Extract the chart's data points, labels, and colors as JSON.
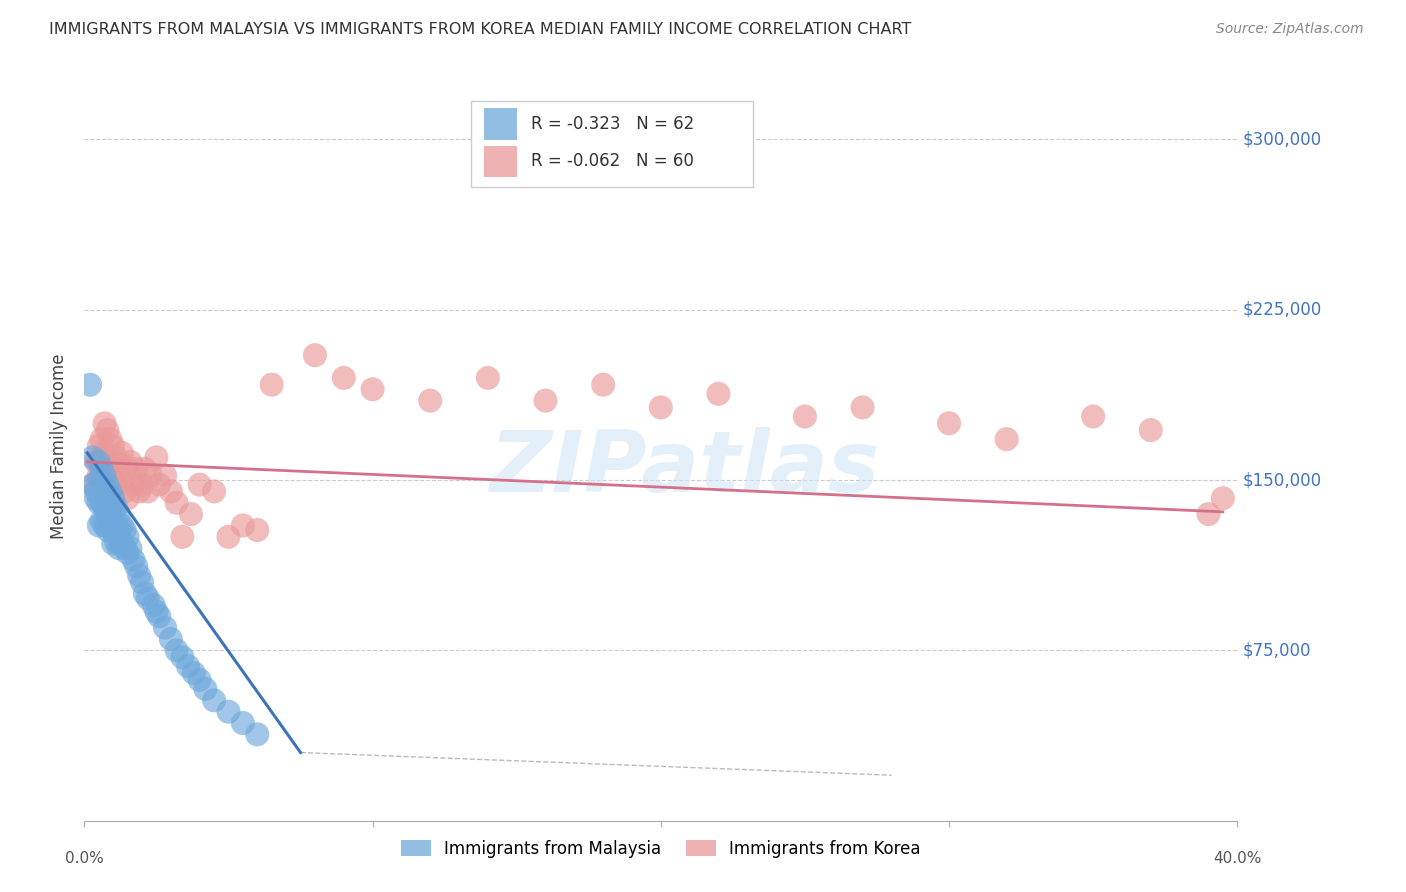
{
  "title": "IMMIGRANTS FROM MALAYSIA VS IMMIGRANTS FROM KOREA MEDIAN FAMILY INCOME CORRELATION CHART",
  "source": "Source: ZipAtlas.com",
  "ylabel": "Median Family Income",
  "ytick_values": [
    75000,
    150000,
    225000,
    300000
  ],
  "ylim": [
    0,
    330000
  ],
  "xlim": [
    0.0,
    0.4
  ],
  "watermark": "ZIPatlas",
  "background_color": "#ffffff",
  "malaysia_color": "#6fa8dc",
  "korea_color": "#ea9999",
  "malaysia_line_color": "#3d74b8",
  "korea_line_color": "#d4718a",
  "legend_malaysia_R": "-0.323",
  "legend_malaysia_N": "62",
  "legend_korea_R": "-0.062",
  "legend_korea_N": "60",
  "malaysia_scatter_x": [
    0.002,
    0.003,
    0.003,
    0.004,
    0.004,
    0.005,
    0.005,
    0.005,
    0.005,
    0.006,
    0.006,
    0.006,
    0.006,
    0.007,
    0.007,
    0.007,
    0.007,
    0.008,
    0.008,
    0.008,
    0.008,
    0.009,
    0.009,
    0.009,
    0.01,
    0.01,
    0.01,
    0.01,
    0.011,
    0.011,
    0.011,
    0.012,
    0.012,
    0.012,
    0.013,
    0.013,
    0.014,
    0.014,
    0.015,
    0.015,
    0.016,
    0.017,
    0.018,
    0.019,
    0.02,
    0.021,
    0.022,
    0.024,
    0.025,
    0.026,
    0.028,
    0.03,
    0.032,
    0.034,
    0.036,
    0.038,
    0.04,
    0.042,
    0.045,
    0.05,
    0.055,
    0.06
  ],
  "malaysia_scatter_y": [
    192000,
    160000,
    148000,
    145000,
    142000,
    158000,
    150000,
    140000,
    130000,
    155000,
    148000,
    140000,
    132000,
    152000,
    145000,
    138000,
    130000,
    148000,
    142000,
    135000,
    128000,
    145000,
    138000,
    130000,
    142000,
    135000,
    128000,
    122000,
    138000,
    130000,
    123000,
    135000,
    128000,
    120000,
    130000,
    123000,
    128000,
    120000,
    125000,
    118000,
    120000,
    115000,
    112000,
    108000,
    105000,
    100000,
    98000,
    95000,
    92000,
    90000,
    85000,
    80000,
    75000,
    72000,
    68000,
    65000,
    62000,
    58000,
    53000,
    48000,
    43000,
    38000
  ],
  "korea_scatter_x": [
    0.003,
    0.004,
    0.005,
    0.005,
    0.006,
    0.006,
    0.007,
    0.007,
    0.008,
    0.008,
    0.009,
    0.009,
    0.01,
    0.01,
    0.011,
    0.011,
    0.012,
    0.013,
    0.013,
    0.014,
    0.015,
    0.015,
    0.016,
    0.017,
    0.018,
    0.019,
    0.02,
    0.021,
    0.022,
    0.023,
    0.025,
    0.026,
    0.028,
    0.03,
    0.032,
    0.034,
    0.037,
    0.04,
    0.045,
    0.05,
    0.055,
    0.06,
    0.065,
    0.08,
    0.09,
    0.1,
    0.12,
    0.14,
    0.16,
    0.18,
    0.2,
    0.22,
    0.25,
    0.27,
    0.3,
    0.32,
    0.35,
    0.37,
    0.39,
    0.395
  ],
  "korea_scatter_y": [
    148000,
    158000,
    165000,
    152000,
    168000,
    155000,
    175000,
    162000,
    172000,
    158000,
    168000,
    155000,
    165000,
    152000,
    160000,
    148000,
    157000,
    150000,
    162000,
    145000,
    155000,
    142000,
    158000,
    148000,
    155000,
    145000,
    148000,
    155000,
    145000,
    152000,
    160000,
    148000,
    152000,
    145000,
    140000,
    125000,
    135000,
    148000,
    145000,
    125000,
    130000,
    128000,
    192000,
    205000,
    195000,
    190000,
    185000,
    195000,
    185000,
    192000,
    182000,
    188000,
    178000,
    182000,
    175000,
    168000,
    178000,
    172000,
    135000,
    142000
  ],
  "malaysia_line_x": [
    0.001,
    0.075
  ],
  "malaysia_line_y": [
    162000,
    30000
  ],
  "korea_line_x": [
    0.001,
    0.395
  ],
  "korea_line_y": [
    158000,
    136000
  ],
  "dashed_line_x": [
    0.075,
    0.28
  ],
  "dashed_line_y": [
    30000,
    20000
  ]
}
